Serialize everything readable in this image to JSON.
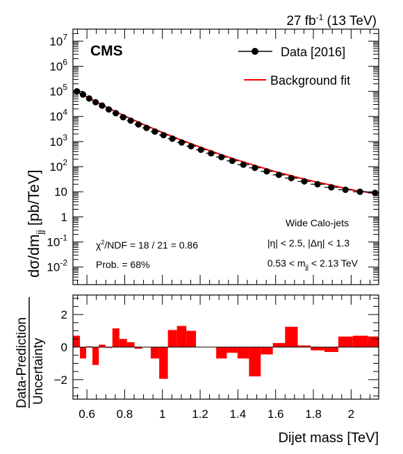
{
  "chart_data": [
    {
      "type": "scatter",
      "panel": "main",
      "lumi_label": "27 fb",
      "lumi_sup": "-1",
      "lumi_energy": " (13 TeV)",
      "experiment": "CMS",
      "ylabel_main": "dσ/dm",
      "ylabel_sub": "jj",
      "ylabel_unit": " [pb/TeV]",
      "yscale": "log",
      "ylim": [
        0.002,
        30000000
      ],
      "xlim": [
        0.526,
        2.146
      ],
      "y_ticks": [
        {
          "value": 0.01,
          "label": "10",
          "sup": "-2"
        },
        {
          "value": 0.1,
          "label": "10",
          "sup": "-1"
        },
        {
          "value": 1,
          "label": "1",
          "sup": ""
        },
        {
          "value": 10,
          "label": "10",
          "sup": ""
        },
        {
          "value": 100,
          "label": "10",
          "sup": "2"
        },
        {
          "value": 1000,
          "label": "10",
          "sup": "3"
        },
        {
          "value": 10000,
          "label": "10",
          "sup": "4"
        },
        {
          "value": 100000,
          "label": "10",
          "sup": "5"
        },
        {
          "value": 1000000,
          "label": "10",
          "sup": "6"
        },
        {
          "value": 10000000,
          "label": "10",
          "sup": "7"
        }
      ],
      "legend": {
        "position": "top-right",
        "entries": [
          {
            "label": "Data [2016]",
            "style": "marker",
            "color": "#000000"
          },
          {
            "label": "Background fit",
            "style": "line",
            "color": "#ff0000"
          }
        ]
      },
      "annotations": {
        "chi2_prefix": "χ",
        "chi2_sup": "2",
        "chi2_rest": "/NDF = 18 / 21 = 0.86",
        "prob": "Prob. = 68%",
        "jets": "Wide Calo-jets",
        "eta_cut": "|η| < 2.5, |Δη| < 1.3",
        "mjj_lo": "0.53 < m",
        "mjj_sub": "jj",
        "mjj_hi": " < 2.13 TeV"
      },
      "series": [
        {
          "name": "Data [2016]",
          "x": [
            0.547,
            0.579,
            0.612,
            0.646,
            0.68,
            0.716,
            0.753,
            0.792,
            0.832,
            0.873,
            0.916,
            0.96,
            1.006,
            1.053,
            1.102,
            1.152,
            1.204,
            1.258,
            1.313,
            1.37,
            1.429,
            1.49,
            1.553,
            1.617,
            1.683,
            1.752,
            1.822,
            1.895,
            1.97,
            2.047,
            2.127
          ],
          "y": [
            100000,
            75000,
            52000,
            37000,
            27000,
            19000,
            13500,
            9300,
            6800,
            4800,
            3500,
            2500,
            1800,
            1300,
            920,
            650,
            470,
            340,
            240,
            170,
            120,
            90,
            65,
            47,
            35,
            26,
            20,
            15,
            12,
            10,
            9
          ]
        },
        {
          "name": "Background fit",
          "x": [
            0.53,
            0.6,
            0.7,
            0.8,
            0.9,
            1.0,
            1.1,
            1.2,
            1.3,
            1.4,
            1.5,
            1.6,
            1.7,
            1.8,
            1.9,
            2.0,
            2.13
          ],
          "y": [
            110000,
            60000,
            24000,
            10500,
            4800,
            2300,
            1150,
            600,
            320,
            180,
            105,
            63,
            40,
            26,
            18,
            12,
            8.5
          ]
        }
      ]
    },
    {
      "type": "bar",
      "panel": "ratio",
      "ylabel_top": "Data-Prediction",
      "ylabel_bottom": "Uncertainty",
      "xlabel": "Dijet mass [TeV]",
      "ylim": [
        -3.2,
        3.2
      ],
      "xlim": [
        0.526,
        2.146
      ],
      "y_ticks": [
        -2,
        0,
        2
      ],
      "x_ticks": [
        0.6,
        0.8,
        1,
        1.2,
        1.4,
        1.6,
        1.8,
        2
      ],
      "x_tick_labels": [
        "0.6",
        "0.8",
        "1",
        "1.2",
        "1.4",
        "1.6",
        "1.8",
        "2"
      ],
      "bin_edges": [
        0.526,
        0.563,
        0.596,
        0.629,
        0.663,
        0.698,
        0.735,
        0.772,
        0.812,
        0.852,
        0.894,
        0.938,
        0.983,
        1.029,
        1.077,
        1.127,
        1.178,
        1.231,
        1.285,
        1.341,
        1.398,
        1.459,
        1.521,
        1.585,
        1.65,
        1.717,
        1.786,
        1.858,
        1.932,
        2.009,
        2.088,
        2.146
      ],
      "values": [
        0.7,
        -0.7,
        0.05,
        -1.1,
        0.15,
        -0.05,
        1.15,
        0.5,
        0.3,
        -0.1,
        0.0,
        -0.7,
        -1.95,
        1.05,
        1.3,
        1.0,
        0.0,
        0.0,
        -0.7,
        -0.35,
        -0.7,
        -1.8,
        -0.45,
        0.25,
        1.25,
        0.1,
        -0.2,
        -0.3,
        0.65,
        0.7,
        0.65
      ],
      "bar_color": "#ff0000"
    }
  ]
}
